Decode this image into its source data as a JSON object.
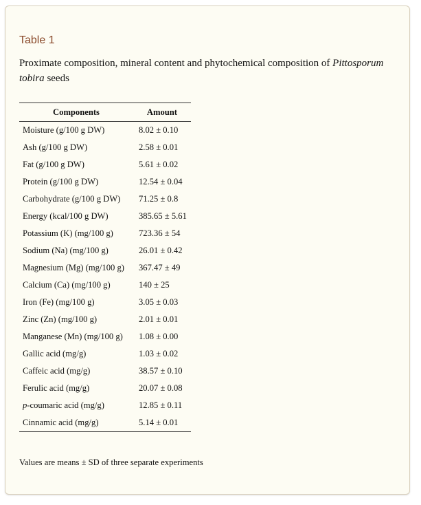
{
  "table_label": "Table 1",
  "caption": {
    "before": "Proximate composition, mineral content and phytochemical composition of ",
    "species": "Pittosporum tobira",
    "after": " seeds"
  },
  "headers": {
    "components": "Components",
    "amount": "Amount"
  },
  "rows": [
    {
      "prefix": "",
      "component": "Moisture (g/100 g DW)",
      "amount": "8.02 ± 0.10"
    },
    {
      "prefix": "",
      "component": "Ash (g/100 g DW)",
      "amount": "2.58 ± 0.01"
    },
    {
      "prefix": "",
      "component": "Fat (g/100 g DW)",
      "amount": "5.61 ± 0.02"
    },
    {
      "prefix": "",
      "component": "Protein (g/100 g DW)",
      "amount": "12.54 ± 0.04"
    },
    {
      "prefix": "",
      "component": "Carbohydrate (g/100 g DW)",
      "amount": "71.25 ± 0.8"
    },
    {
      "prefix": "",
      "component": "Energy (kcal/100 g DW)",
      "amount": "385.65 ± 5.61"
    },
    {
      "prefix": "",
      "component": "Potassium (K) (mg/100 g)",
      "amount": "723.36 ± 54"
    },
    {
      "prefix": "",
      "component": "Sodium (Na) (mg/100 g)",
      "amount": "26.01 ± 0.42"
    },
    {
      "prefix": "",
      "component": "Magnesium (Mg) (mg/100 g)",
      "amount": "367.47 ± 49"
    },
    {
      "prefix": "",
      "component": "Calcium (Ca) (mg/100 g)",
      "amount": "140 ± 25"
    },
    {
      "prefix": "",
      "component": "Iron (Fe) (mg/100 g)",
      "amount": "3.05 ± 0.03"
    },
    {
      "prefix": "",
      "component": "Zinc (Zn) (mg/100 g)",
      "amount": "2.01 ± 0.01"
    },
    {
      "prefix": "",
      "component": "Manganese (Mn) (mg/100 g)",
      "amount": "1.08 ± 0.00"
    },
    {
      "prefix": "",
      "component": "Gallic acid (mg/g)",
      "amount": "1.03 ± 0.02"
    },
    {
      "prefix": "",
      "component": "Caffeic acid (mg/g)",
      "amount": "38.57 ± 0.10"
    },
    {
      "prefix": "",
      "component": "Ferulic acid (mg/g)",
      "amount": "20.07 ± 0.08"
    },
    {
      "prefix": "p",
      "component": "-coumaric acid (mg/g)",
      "amount": "12.85 ± 0.11"
    },
    {
      "prefix": "",
      "component": "Cinnamic acid (mg/g)",
      "amount": "5.14 ± 0.01"
    }
  ],
  "footnote": "Values are means ± SD of three separate experiments"
}
